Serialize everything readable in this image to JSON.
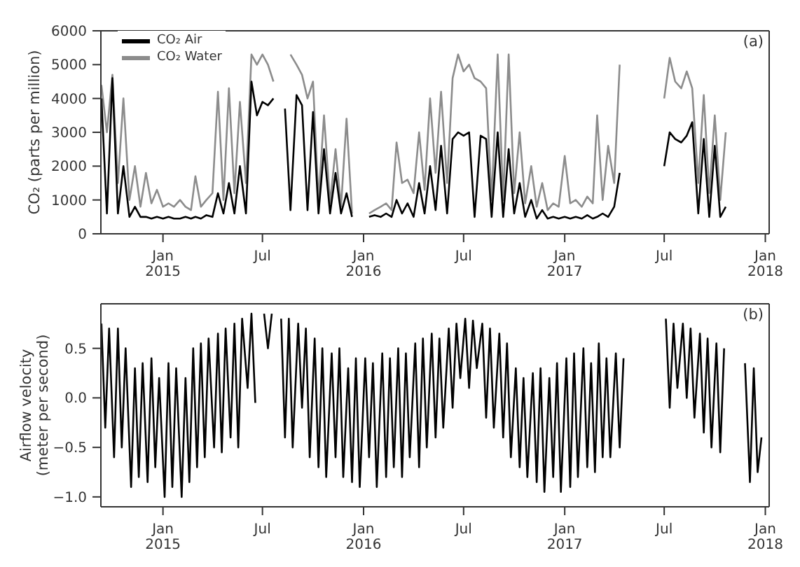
{
  "chart_data": [
    {
      "type": "line",
      "ylabel": "CO₂ (parts per million)",
      "annotations": [
        "(a)"
      ],
      "legend": "top left",
      "x": [
        "2014-09-11",
        "2014-09-21",
        "2014-10-01",
        "2014-10-11",
        "2014-10-21",
        "2014-11-01",
        "2014-11-11",
        "2014-11-21",
        "2014-12-01",
        "2014-12-11",
        "2014-12-21",
        "2015-01-01",
        "2015-01-11",
        "2015-01-21",
        "2015-02-01",
        "2015-02-11",
        "2015-02-21",
        "2015-03-01",
        "2015-03-11",
        "2015-03-21",
        "2015-04-01",
        "2015-04-11",
        "2015-04-21",
        "2015-05-01",
        "2015-05-11",
        "2015-05-21",
        "2015-06-01",
        "2015-06-11",
        "2015-06-21",
        "2015-07-01",
        "2015-07-11",
        "2015-07-21",
        "2015-08-01",
        "2015-08-11",
        "2015-08-21",
        "2015-09-01",
        "2015-09-11",
        "2015-09-21",
        "2015-10-01",
        "2015-10-11",
        "2015-10-21",
        "2015-11-01",
        "2015-11-11",
        "2015-11-21",
        "2015-12-01",
        "2015-12-11",
        "2015-12-21",
        "2016-01-01",
        "2016-01-11",
        "2016-01-21",
        "2016-02-01",
        "2016-02-11",
        "2016-02-21",
        "2016-03-01",
        "2016-03-11",
        "2016-03-21",
        "2016-04-01",
        "2016-04-11",
        "2016-04-21",
        "2016-05-01",
        "2016-05-11",
        "2016-05-21",
        "2016-06-01",
        "2016-06-11",
        "2016-06-21",
        "2016-07-01",
        "2016-07-11",
        "2016-07-21",
        "2016-08-01",
        "2016-08-11",
        "2016-08-21",
        "2016-09-01",
        "2016-09-11",
        "2016-09-21",
        "2016-10-01",
        "2016-10-11",
        "2016-10-21",
        "2016-11-01",
        "2016-11-11",
        "2016-11-21",
        "2016-12-01",
        "2016-12-11",
        "2016-12-21",
        "2017-01-01",
        "2017-01-11",
        "2017-01-21",
        "2017-02-01",
        "2017-02-11",
        "2017-02-21",
        "2017-03-01",
        "2017-03-11",
        "2017-03-21",
        "2017-04-01",
        "2017-04-11",
        "2017-04-21",
        "2017-07-01",
        "2017-07-11",
        "2017-07-21",
        "2017-08-01",
        "2017-08-11",
        "2017-08-21",
        "2017-09-01",
        "2017-09-11",
        "2017-09-21",
        "2017-10-01",
        "2017-10-11",
        "2017-10-21"
      ],
      "series": [
        {
          "name": "CO₂ Air",
          "color": "#000000",
          "values": [
            4000,
            600,
            4600,
            600,
            2000,
            500,
            800,
            500,
            500,
            450,
            500,
            450,
            500,
            450,
            450,
            500,
            450,
            500,
            450,
            550,
            500,
            1200,
            600,
            1500,
            600,
            2000,
            600,
            4500,
            3500,
            3900,
            3800,
            4000,
            null,
            3700,
            700,
            4100,
            3800,
            700,
            3600,
            600,
            2500,
            600,
            1800,
            600,
            1200,
            500,
            null,
            null,
            500,
            550,
            500,
            600,
            500,
            1000,
            600,
            900,
            500,
            1500,
            600,
            2000,
            700,
            2600,
            600,
            2800,
            3000,
            2900,
            3000,
            500,
            2900,
            2800,
            500,
            3000,
            500,
            2500,
            600,
            1500,
            500,
            1000,
            450,
            700,
            450,
            500,
            450,
            500,
            450,
            500,
            450,
            550,
            450,
            500,
            600,
            500,
            800,
            1800,
            null,
            2000,
            3000,
            2800,
            2700,
            2900,
            3300,
            600,
            2800,
            500,
            2600,
            500,
            800
          ]
        },
        {
          "name": "CO₂ Water",
          "color": "#8c8c8c",
          "values": [
            4400,
            3000,
            4700,
            1500,
            4000,
            1000,
            2000,
            800,
            1800,
            900,
            1300,
            800,
            900,
            800,
            1000,
            800,
            700,
            1700,
            800,
            1000,
            1200,
            4200,
            1000,
            4300,
            1200,
            3900,
            1500,
            5300,
            5000,
            5300,
            5000,
            4500,
            null,
            null,
            5300,
            5000,
            4700,
            4000,
            4500,
            1000,
            3500,
            900,
            2500,
            800,
            3400,
            600,
            null,
            null,
            600,
            700,
            800,
            900,
            700,
            2700,
            1500,
            1600,
            1200,
            3000,
            1300,
            4000,
            1800,
            4200,
            1500,
            4600,
            5300,
            4800,
            5000,
            4600,
            4500,
            4300,
            1000,
            5300,
            1000,
            5300,
            1200,
            3000,
            900,
            2000,
            800,
            1500,
            700,
            900,
            800,
            2300,
            900,
            1000,
            800,
            1100,
            900,
            3500,
            1000,
            2600,
            1500,
            5000,
            null,
            4000,
            5200,
            4500,
            4300,
            4800,
            4300,
            1500,
            4100,
            1200,
            3500,
            1000,
            3000
          ]
        }
      ],
      "xlim": [
        "2014-09-10",
        "2018-01-08"
      ],
      "xticks": [
        {
          "value": "2015-01-01",
          "label": "Jan\n2015"
        },
        {
          "value": "2015-07-01",
          "label": "Jul"
        },
        {
          "value": "2016-01-01",
          "label": "Jan\n2016"
        },
        {
          "value": "2016-07-01",
          "label": "Jul"
        },
        {
          "value": "2017-01-01",
          "label": "Jan\n2017"
        },
        {
          "value": "2017-07-01",
          "label": "Jul"
        },
        {
          "value": "2018-01-01",
          "label": "Jan\n2018"
        }
      ],
      "ylim": [
        0,
        6000
      ],
      "yticks": [
        0,
        1000,
        2000,
        3000,
        4000,
        5000,
        6000
      ]
    },
    {
      "type": "line",
      "ylabel": "Airflow velocity\n(meter per second)",
      "annotations": [
        "(b)"
      ],
      "x": [
        "2014-09-11",
        "2014-09-18",
        "2014-09-25",
        "2014-10-04",
        "2014-10-11",
        "2014-10-18",
        "2014-10-25",
        "2014-11-04",
        "2014-11-11",
        "2014-11-18",
        "2014-11-25",
        "2014-12-04",
        "2014-12-11",
        "2014-12-18",
        "2014-12-25",
        "2015-01-04",
        "2015-01-11",
        "2015-01-18",
        "2015-01-25",
        "2015-02-04",
        "2015-02-11",
        "2015-02-18",
        "2015-02-25",
        "2015-03-04",
        "2015-03-11",
        "2015-03-18",
        "2015-03-25",
        "2015-04-04",
        "2015-04-11",
        "2015-04-18",
        "2015-04-25",
        "2015-05-04",
        "2015-05-11",
        "2015-05-18",
        "2015-05-25",
        "2015-06-04",
        "2015-06-11",
        "2015-06-18",
        "2015-06-25",
        "2015-07-04",
        "2015-07-11",
        "2015-07-18",
        "2015-07-25",
        "2015-08-04",
        "2015-08-11",
        "2015-08-18",
        "2015-08-25",
        "2015-09-04",
        "2015-09-11",
        "2015-09-18",
        "2015-09-25",
        "2015-10-04",
        "2015-10-11",
        "2015-10-18",
        "2015-10-25",
        "2015-11-04",
        "2015-11-11",
        "2015-11-18",
        "2015-11-25",
        "2015-12-04",
        "2015-12-11",
        "2015-12-18",
        "2015-12-25",
        "2016-01-04",
        "2016-01-11",
        "2016-01-18",
        "2016-01-25",
        "2016-02-04",
        "2016-02-11",
        "2016-02-18",
        "2016-02-25",
        "2016-03-04",
        "2016-03-11",
        "2016-03-18",
        "2016-03-25",
        "2016-04-04",
        "2016-04-11",
        "2016-04-18",
        "2016-04-25",
        "2016-05-04",
        "2016-05-11",
        "2016-05-18",
        "2016-05-25",
        "2016-06-04",
        "2016-06-11",
        "2016-06-18",
        "2016-06-25",
        "2016-07-04",
        "2016-07-11",
        "2016-07-18",
        "2016-07-25",
        "2016-08-04",
        "2016-08-11",
        "2016-08-18",
        "2016-08-25",
        "2016-09-04",
        "2016-09-11",
        "2016-09-18",
        "2016-09-25",
        "2016-10-04",
        "2016-10-11",
        "2016-10-18",
        "2016-10-25",
        "2016-11-04",
        "2016-11-11",
        "2016-11-18",
        "2016-11-25",
        "2016-12-04",
        "2016-12-11",
        "2016-12-18",
        "2016-12-25",
        "2017-01-04",
        "2017-01-11",
        "2017-01-18",
        "2017-01-25",
        "2017-02-04",
        "2017-02-11",
        "2017-02-18",
        "2017-02-25",
        "2017-03-04",
        "2017-03-11",
        "2017-03-18",
        "2017-03-25",
        "2017-04-04",
        "2017-04-11",
        "2017-04-18",
        "2017-04-25",
        "2017-07-04",
        "2017-07-11",
        "2017-07-18",
        "2017-07-25",
        "2017-08-04",
        "2017-08-11",
        "2017-08-18",
        "2017-08-25",
        "2017-09-04",
        "2017-09-11",
        "2017-09-18",
        "2017-09-25",
        "2017-10-04",
        "2017-10-11",
        "2017-10-18",
        "2017-10-25",
        "2017-11-25",
        "2017-12-04",
        "2017-12-11",
        "2017-12-18",
        "2017-12-25"
      ],
      "series": [
        {
          "color": "#000000",
          "values": [
            0.75,
            -0.3,
            0.7,
            -0.6,
            0.7,
            -0.5,
            0.5,
            -0.9,
            0.3,
            -0.8,
            0.35,
            -0.85,
            0.4,
            -0.7,
            0.2,
            -1.0,
            0.35,
            -0.9,
            0.3,
            -1.0,
            0.2,
            -0.85,
            0.5,
            -0.7,
            0.55,
            -0.6,
            0.6,
            -0.5,
            0.65,
            -0.55,
            0.7,
            -0.4,
            0.75,
            -0.5,
            0.8,
            0.1,
            0.85,
            -0.05,
            null,
            0.85,
            0.5,
            0.85,
            null,
            0.8,
            -0.4,
            0.8,
            -0.5,
            0.75,
            -0.1,
            0.7,
            -0.6,
            0.6,
            -0.7,
            0.5,
            -0.8,
            0.45,
            -0.6,
            0.5,
            -0.8,
            0.3,
            -0.85,
            0.4,
            -0.9,
            0.4,
            -0.6,
            0.35,
            -0.9,
            0.45,
            -0.8,
            0.4,
            -0.7,
            0.5,
            -0.8,
            0.45,
            -0.6,
            0.55,
            -0.7,
            0.6,
            -0.5,
            0.65,
            -0.4,
            0.6,
            -0.3,
            0.7,
            -0.1,
            0.75,
            0.2,
            0.8,
            0.1,
            0.78,
            0.3,
            0.75,
            -0.2,
            0.7,
            -0.3,
            0.65,
            -0.4,
            0.55,
            -0.6,
            0.3,
            -0.7,
            0.2,
            -0.8,
            0.25,
            -0.85,
            0.3,
            -0.95,
            0.2,
            -0.8,
            0.35,
            -0.95,
            0.4,
            -0.9,
            0.45,
            -0.8,
            0.5,
            -0.7,
            0.35,
            -0.75,
            0.55,
            -0.6,
            0.4,
            -0.6,
            0.45,
            -0.5,
            0.4,
            null,
            0.8,
            -0.1,
            0.75,
            0.1,
            0.75,
            0.0,
            0.7,
            -0.2,
            0.65,
            -0.35,
            0.6,
            -0.5,
            0.55,
            -0.55,
            0.5,
            null,
            0.35,
            -0.85,
            0.3,
            -0.75,
            -0.4
          ]
        }
      ],
      "xlim": [
        "2014-09-10",
        "2018-01-08"
      ],
      "xticks": [
        {
          "value": "2015-01-01",
          "label": "Jan\n2015"
        },
        {
          "value": "2015-07-01",
          "label": "Jul"
        },
        {
          "value": "2016-01-01",
          "label": "Jan\n2016"
        },
        {
          "value": "2016-07-01",
          "label": "Jul"
        },
        {
          "value": "2017-01-01",
          "label": "Jan\n2017"
        },
        {
          "value": "2017-07-01",
          "label": "Jul"
        },
        {
          "value": "2018-01-01",
          "label": "Jan\n2018"
        }
      ],
      "ylim": [
        -1.1,
        0.95
      ],
      "yticks": [
        {
          "value": 0.5,
          "label": "0.5"
        },
        {
          "value": 0.0,
          "label": "0.0"
        },
        {
          "value": -0.5,
          "label": "−0.5"
        },
        {
          "value": -1.0,
          "label": "−1.0"
        }
      ]
    }
  ]
}
